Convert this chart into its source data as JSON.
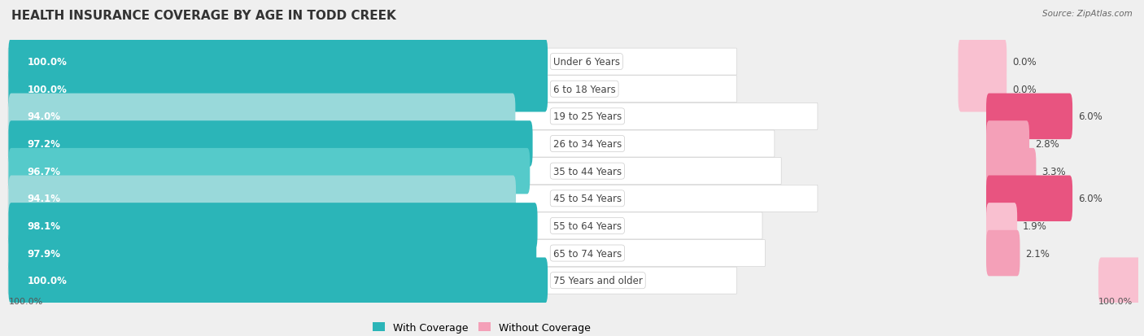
{
  "title": "HEALTH INSURANCE COVERAGE BY AGE IN TODD CREEK",
  "source": "Source: ZipAtlas.com",
  "categories": [
    "Under 6 Years",
    "6 to 18 Years",
    "19 to 25 Years",
    "26 to 34 Years",
    "35 to 44 Years",
    "45 to 54 Years",
    "55 to 64 Years",
    "65 to 74 Years",
    "75 Years and older"
  ],
  "with_coverage": [
    100.0,
    100.0,
    94.0,
    97.2,
    96.7,
    94.1,
    98.1,
    97.9,
    100.0
  ],
  "without_coverage": [
    0.0,
    0.0,
    6.0,
    2.8,
    3.3,
    6.0,
    1.9,
    2.1,
    0.0
  ],
  "color_with_100": "#2BB5B8",
  "color_with_high": "#2BB5B8",
  "color_with_mid": "#55CACA",
  "color_with_low": "#99D9DA",
  "color_without_high": "#E85480",
  "color_without_mid": "#F4A0B8",
  "color_without_low": "#F9C0D0",
  "color_without_zero": "#F9C0D0",
  "bg_color": "#EFEFEF",
  "row_bg": "#FFFFFF",
  "title_fontsize": 11,
  "label_fontsize": 8.5,
  "cat_fontsize": 8.5,
  "legend_fontsize": 9,
  "note_fontsize": 8
}
